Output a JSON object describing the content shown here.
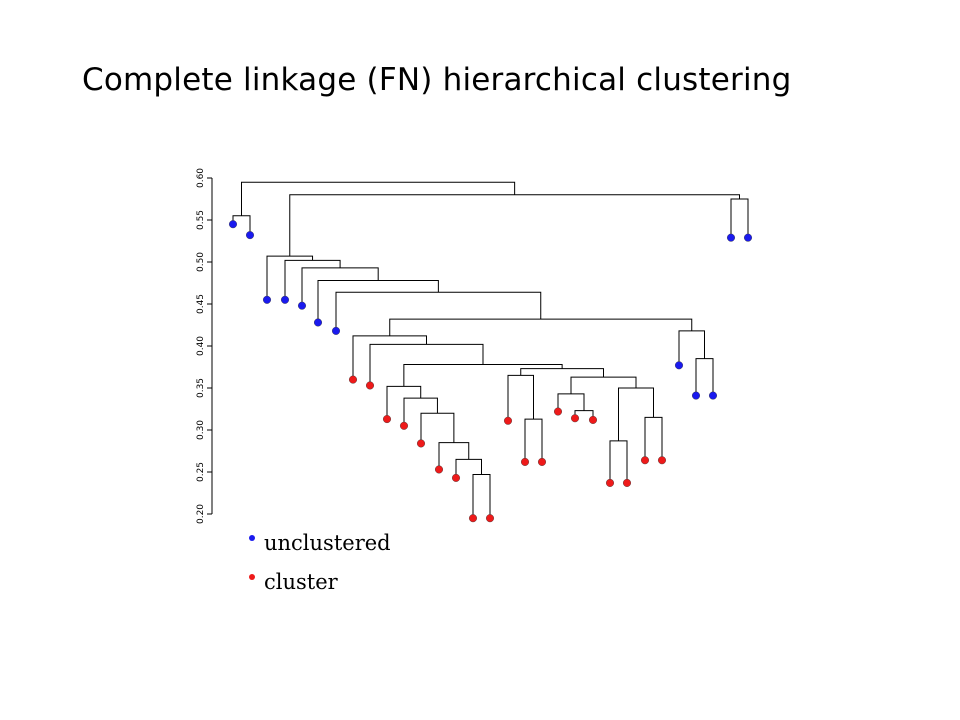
{
  "title": "Complete linkage (FN) hierarchical clustering",
  "colors": {
    "unclustered": "#1a1aee",
    "cluster": "#ee1a1a",
    "line": "#000000"
  },
  "axis": {
    "ylim": [
      0.2,
      0.6
    ],
    "ticks": [
      "0.20",
      "0.25",
      "0.30",
      "0.35",
      "0.40",
      "0.45",
      "0.50",
      "0.55",
      "0.60"
    ],
    "tick_values": [
      0.2,
      0.25,
      0.3,
      0.35,
      0.4,
      0.45,
      0.5,
      0.55,
      0.6
    ]
  },
  "legend": [
    {
      "label": "unclustered",
      "color": "unclustered"
    },
    {
      "label": "cluster",
      "color": "cluster"
    }
  ],
  "dendrogram": {
    "leaves": [
      {
        "y": 0.545,
        "group": "unclustered"
      },
      {
        "y": 0.532,
        "group": "unclustered"
      },
      {
        "y": 0.455,
        "group": "unclustered"
      },
      {
        "y": 0.455,
        "group": "unclustered"
      },
      {
        "y": 0.448,
        "group": "unclustered"
      },
      {
        "y": 0.428,
        "group": "unclustered"
      },
      {
        "y": 0.418,
        "group": "unclustered"
      },
      {
        "y": 0.36,
        "group": "cluster"
      },
      {
        "y": 0.353,
        "group": "cluster"
      },
      {
        "y": 0.313,
        "group": "cluster"
      },
      {
        "y": 0.305,
        "group": "cluster"
      },
      {
        "y": 0.284,
        "group": "cluster"
      },
      {
        "y": 0.253,
        "group": "cluster"
      },
      {
        "y": 0.243,
        "group": "cluster"
      },
      {
        "y": 0.195,
        "group": "cluster"
      },
      {
        "y": 0.195,
        "group": "cluster"
      },
      {
        "y": 0.311,
        "group": "cluster"
      },
      {
        "y": 0.262,
        "group": "cluster"
      },
      {
        "y": 0.262,
        "group": "cluster"
      },
      {
        "y": 0.322,
        "group": "cluster"
      },
      {
        "y": 0.314,
        "group": "cluster"
      },
      {
        "y": 0.312,
        "group": "cluster"
      },
      {
        "y": 0.237,
        "group": "cluster"
      },
      {
        "y": 0.237,
        "group": "cluster"
      },
      {
        "y": 0.264,
        "group": "cluster"
      },
      {
        "y": 0.264,
        "group": "cluster"
      },
      {
        "y": 0.377,
        "group": "unclustered"
      },
      {
        "y": 0.341,
        "group": "unclustered"
      },
      {
        "y": 0.341,
        "group": "unclustered"
      },
      {
        "y": 0.529,
        "group": "unclustered"
      },
      {
        "y": 0.529,
        "group": "unclustered"
      }
    ],
    "merges": [
      {
        "a": "L0",
        "b": "L1",
        "h": 0.555
      },
      {
        "a": "L14",
        "b": "L15",
        "h": 0.247
      },
      {
        "a": "L13",
        "b": "N1",
        "h": 0.265
      },
      {
        "a": "L12",
        "b": "N2",
        "h": 0.285
      },
      {
        "a": "L11",
        "b": "N3",
        "h": 0.32
      },
      {
        "a": "L10",
        "b": "N4",
        "h": 0.338
      },
      {
        "a": "L9",
        "b": "N5",
        "h": 0.352
      },
      {
        "a": "L17",
        "b": "L18",
        "h": 0.313
      },
      {
        "a": "L16",
        "b": "N7",
        "h": 0.365
      },
      {
        "a": "L20",
        "b": "L21",
        "h": 0.323
      },
      {
        "a": "L19",
        "b": "N9",
        "h": 0.343
      },
      {
        "a": "L22",
        "b": "L23",
        "h": 0.287
      },
      {
        "a": "L24",
        "b": "L25",
        "h": 0.315
      },
      {
        "a": "N11",
        "b": "N12",
        "h": 0.35
      },
      {
        "a": "N10",
        "b": "N13",
        "h": 0.363
      },
      {
        "a": "N8",
        "b": "N14",
        "h": 0.373
      },
      {
        "a": "N6",
        "b": "N15",
        "h": 0.378
      },
      {
        "a": "L8",
        "b": "N16",
        "h": 0.402
      },
      {
        "a": "L7",
        "b": "N17",
        "h": 0.412
      },
      {
        "a": "L27",
        "b": "L28",
        "h": 0.385
      },
      {
        "a": "L26",
        "b": "N19",
        "h": 0.418
      },
      {
        "a": "N18",
        "b": "N20",
        "h": 0.432
      },
      {
        "a": "L6",
        "b": "N21",
        "h": 0.464
      },
      {
        "a": "L5",
        "b": "N22",
        "h": 0.478
      },
      {
        "a": "L4",
        "b": "N23",
        "h": 0.493
      },
      {
        "a": "L3",
        "b": "N24",
        "h": 0.502
      },
      {
        "a": "L2",
        "b": "N25",
        "h": 0.507
      },
      {
        "a": "L29",
        "b": "L30",
        "h": 0.575
      },
      {
        "a": "N26",
        "b": "N27",
        "h": 0.58
      },
      {
        "a": "N0",
        "b": "N28",
        "h": 0.595
      }
    ]
  }
}
